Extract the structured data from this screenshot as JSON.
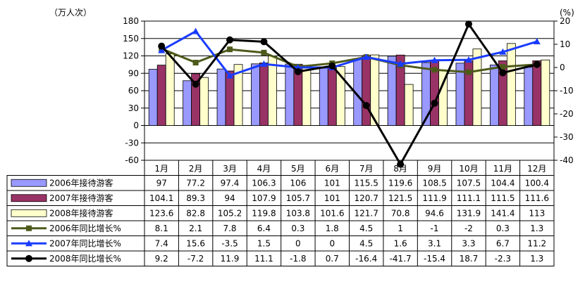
{
  "chart_data": {
    "type": "bar",
    "left_axis_unit": "（万人次）",
    "right_axis_unit": "(%)",
    "left_ylim": [
      -60,
      180
    ],
    "left_ticks": [
      "180",
      "150",
      "120",
      "90",
      "60",
      "30",
      "0",
      "-30",
      "-60"
    ],
    "right_ylim": [
      -40,
      20
    ],
    "right_ticks": [
      "20",
      "10",
      "0",
      "-10",
      "-20",
      "-30",
      "-40"
    ],
    "categories": [
      "1月",
      "2月",
      "3月",
      "4月",
      "5月",
      "6月",
      "7月",
      "8月",
      "9月",
      "10月",
      "11月",
      "12月"
    ],
    "bar_series": [
      {
        "name": "2006年接待游客",
        "color": "#9999ff",
        "values": [
          97,
          77.2,
          97.4,
          106.3,
          106,
          101,
          115.5,
          119.6,
          108.5,
          107.5,
          104.4,
          100.4
        ],
        "cells": [
          "97",
          "77.2",
          "97.4",
          "106.3",
          "106",
          "101",
          "115.5",
          "119.6",
          "108.5",
          "107.5",
          "104.4",
          "100.4"
        ]
      },
      {
        "name": "2007年接待游客",
        "color": "#993366",
        "values": [
          104.1,
          89.3,
          94,
          107.9,
          105.7,
          101,
          120.7,
          121.5,
          111.9,
          111.1,
          111.5,
          111.6
        ],
        "cells": [
          "104.1",
          "89.3",
          "94",
          "107.9",
          "105.7",
          "101",
          "120.7",
          "121.5",
          "111.9",
          "111.1",
          "111.5",
          "111.6"
        ]
      },
      {
        "name": "2008年接待游客",
        "color": "#ffffcc",
        "values": [
          123.6,
          82.8,
          105.2,
          119.8,
          103.8,
          101.6,
          121.7,
          70.8,
          94.6,
          131.9,
          141.4,
          113
        ],
        "cells": [
          "123.6",
          "82.8",
          "105.2",
          "119.8",
          "103.8",
          "101.6",
          "121.7",
          "70.8",
          "94.6",
          "131.9",
          "141.4",
          "113"
        ]
      }
    ],
    "line_series": [
      {
        "name": "2006年同比增长%",
        "color": "#4d5a1a",
        "marker": "square",
        "values": [
          8.1,
          2.1,
          7.8,
          6.4,
          0.3,
          1.8,
          4.5,
          1,
          -1,
          -2,
          0.3,
          1.3
        ],
        "cells": [
          "8.1",
          "2.1",
          "7.8",
          "6.4",
          "0.3",
          "1.8",
          "4.5",
          "1",
          "-1",
          "-2",
          "0.3",
          "1.3"
        ]
      },
      {
        "name": "2007年同比增长%",
        "color": "#1a3cff",
        "marker": "triangle",
        "values": [
          7.4,
          15.6,
          -3.5,
          1.5,
          0,
          0,
          4.5,
          1.6,
          3.1,
          3.3,
          6.7,
          11.2
        ],
        "cells": [
          "7.4",
          "15.6",
          "-3.5",
          "1.5",
          "0",
          "0",
          "4.5",
          "1.6",
          "3.1",
          "3.3",
          "6.7",
          "11.2"
        ]
      },
      {
        "name": "2008年同比增长%",
        "color": "#000000",
        "marker": "circle",
        "values": [
          9.2,
          -7.2,
          11.9,
          11.1,
          -1.8,
          0.7,
          -16.4,
          -41.7,
          -15.4,
          18.7,
          -2.3,
          1.3
        ],
        "cells": [
          "9.2",
          "-7.2",
          "11.9",
          "11.1",
          "-1.8",
          "0.7",
          "-16.4",
          "-41.7",
          "-15.4",
          "18.7",
          "-2.3",
          "1.3"
        ]
      }
    ],
    "plot_background": "#ffffff",
    "grid": true
  }
}
